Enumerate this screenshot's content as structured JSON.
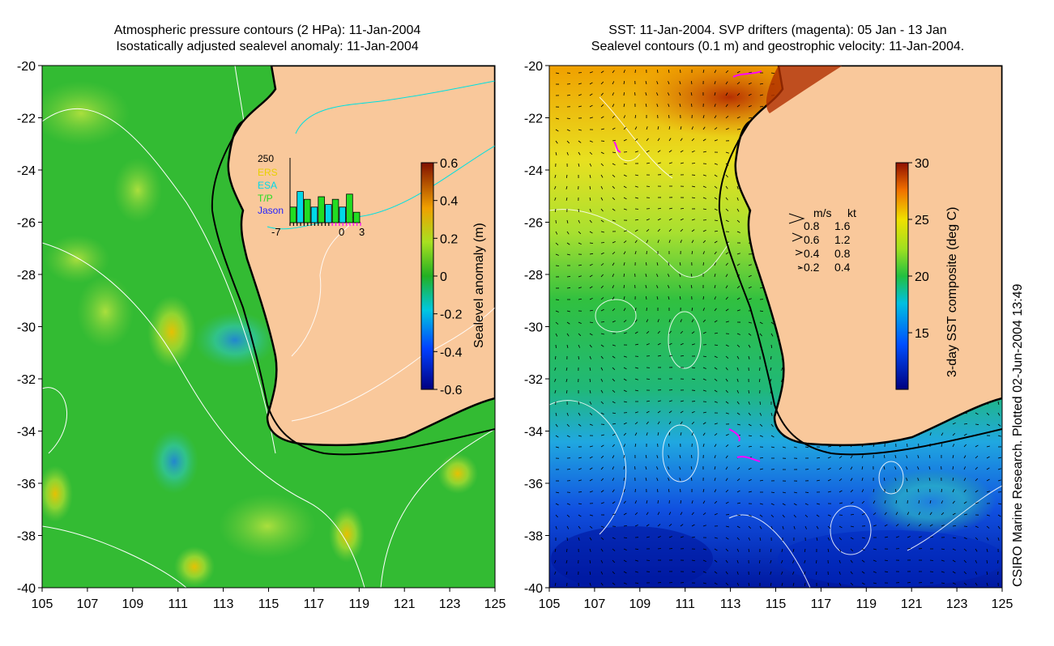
{
  "left_panel": {
    "title_line1": "Atmospheric pressure contours (2 HPa): 11-Jan-2004",
    "title_line2": "Isostatically adjusted sealevel anomaly: 11-Jan-2004"
  },
  "right_panel": {
    "title_line1": "SST: 11-Jan-2004. SVP drifters (magenta): 05 Jan - 13 Jan",
    "title_line2": "Sealevel contours (0.1 m) and geostrophic velocity: 11-Jan-2004."
  },
  "credit": "CSIRO Marine Research. Plotted 02-Jun-2004 13:49",
  "colors": {
    "land": "#f9c89b",
    "ocean_mid": "#33bb33",
    "sst_warm": "#e05a00",
    "sst_cold": "#1060d0",
    "contour": "#ffffff",
    "drifter": "#ff00ff",
    "cyan_contour": "#00e0e0"
  },
  "chart_data": [
    {
      "type": "heatmap",
      "name": "sealevel-anomaly-map",
      "x": {
        "label": "",
        "range": [
          105,
          125
        ],
        "ticks": [
          "105",
          "107",
          "109",
          "111",
          "113",
          "115",
          "117",
          "119",
          "121",
          "123",
          "125"
        ]
      },
      "y": {
        "label": "",
        "range": [
          -40,
          -20
        ],
        "ticks": [
          "-20",
          "-22",
          "-24",
          "-26",
          "-28",
          "-30",
          "-32",
          "-34",
          "-36",
          "-38",
          "-40"
        ]
      },
      "colorbar": {
        "label": "Sealevel anomaly (m)",
        "range": [
          -0.6,
          0.6
        ],
        "ticks": [
          "0.6",
          "0.4",
          "0.2",
          "0",
          "-0.2",
          "-0.4",
          "-0.6"
        ]
      },
      "inset": {
        "ymax_label": "250",
        "x_ticks": [
          "-7",
          "0",
          "3"
        ],
        "legend": [
          {
            "label": "ERS",
            "color": "#e8d000"
          },
          {
            "label": "ESA",
            "color": "#00d8e8"
          },
          {
            "label": "T/P",
            "color": "#22dd22"
          },
          {
            "label": "Jason",
            "color": "#2222ff"
          }
        ],
        "bars_day": [
          -7,
          -6,
          -5,
          -4,
          -3,
          -2,
          -1,
          0,
          1,
          2
        ],
        "bars_value": [
          60,
          120,
          90,
          60,
          100,
          70,
          90,
          60,
          110,
          40
        ]
      }
    },
    {
      "type": "heatmap",
      "name": "sst-map",
      "x": {
        "label": "",
        "range": [
          105,
          125
        ],
        "ticks": [
          "105",
          "107",
          "109",
          "111",
          "113",
          "115",
          "117",
          "119",
          "121",
          "123",
          "125"
        ]
      },
      "y": {
        "label": "",
        "range": [
          -40,
          -20
        ],
        "ticks": [
          "-20",
          "-22",
          "-24",
          "-26",
          "-28",
          "-30",
          "-32",
          "-34",
          "-36",
          "-38",
          "-40"
        ]
      },
      "colorbar": {
        "label": "3-day SST composite (deg C)",
        "range": [
          10,
          30
        ],
        "ticks": [
          "30",
          "25",
          "20",
          "15"
        ]
      },
      "velocity_legend": {
        "header_ms": "m/s",
        "header_kt": "kt",
        "rows": [
          {
            "ms": "0.8",
            "kt": "1.6"
          },
          {
            "ms": "0.6",
            "kt": "1.2"
          },
          {
            "ms": "0.4",
            "kt": "0.8"
          },
          {
            "ms": "0.2",
            "kt": "0.4"
          }
        ]
      }
    }
  ]
}
